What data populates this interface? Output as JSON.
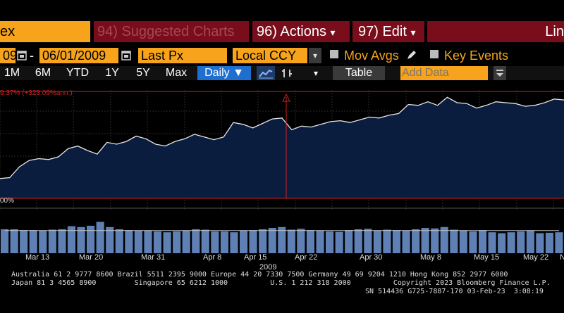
{
  "toolbar": {
    "security_fragment": "ex",
    "suggested_charts": "94) Suggested Charts",
    "actions": "96) Actions",
    "edit": "97) Edit",
    "line_fragment": "Lin",
    "dropdown_glyph": "▾"
  },
  "settings": {
    "start_date_fragment": "09",
    "date_separator": "-",
    "end_date": "06/01/2009",
    "price_field": "Last Px",
    "currency": "Local CCY",
    "mov_avgs": "Mov Avgs",
    "key_events": "Key Events"
  },
  "ranges": {
    "items": [
      "1M",
      "6M",
      "YTD",
      "1Y",
      "5Y",
      "Max"
    ],
    "frequency": "Daily ▼",
    "table_label": "Table",
    "add_data_placeholder": "Add Data"
  },
  "chart_data": {
    "type": "area",
    "annotation_top": "9.37% (+323.09%ann.)",
    "annotation_bottom": "00%",
    "x_ticks": [
      "Mar 13",
      "Mar 20",
      "Mar 31",
      "Apr 8",
      "Apr 15",
      "Apr 22",
      "Apr 30",
      "May 8",
      "May 15",
      "May 22",
      "N"
    ],
    "year_label": "2009",
    "price_series": [
      0.22,
      0.23,
      0.35,
      0.42,
      0.44,
      0.43,
      0.46,
      0.55,
      0.58,
      0.53,
      0.49,
      0.62,
      0.6,
      0.63,
      0.69,
      0.66,
      0.6,
      0.58,
      0.63,
      0.66,
      0.71,
      0.68,
      0.65,
      0.68,
      0.84,
      0.82,
      0.78,
      0.83,
      0.88,
      0.89,
      0.76,
      0.8,
      0.79,
      0.82,
      0.85,
      0.86,
      0.84,
      0.87,
      0.9,
      0.89,
      0.92,
      0.94,
      1.04,
      1.03,
      1.07,
      1.03,
      1.12,
      1.06,
      1.05,
      1.0,
      1.03,
      1.07,
      1.06,
      1.05,
      1.02,
      1.03,
      1.06,
      1.1,
      1.09
    ],
    "volume_series": [
      0.55,
      0.55,
      0.53,
      0.53,
      0.52,
      0.54,
      0.55,
      0.62,
      0.6,
      0.63,
      0.72,
      0.6,
      0.55,
      0.53,
      0.52,
      0.52,
      0.5,
      0.48,
      0.5,
      0.52,
      0.55,
      0.54,
      0.5,
      0.5,
      0.48,
      0.52,
      0.53,
      0.55,
      0.58,
      0.6,
      0.54,
      0.56,
      0.53,
      0.52,
      0.5,
      0.49,
      0.53,
      0.55,
      0.56,
      0.52,
      0.54,
      0.53,
      0.52,
      0.55,
      0.58,
      0.57,
      0.6,
      0.54,
      0.52,
      0.5,
      0.53,
      0.48,
      0.46,
      0.48,
      0.5,
      0.52,
      0.46,
      0.47,
      0.48
    ],
    "colors": {
      "fill": "#0b1d3e",
      "line": "#e8e8e8",
      "volume": "#5e80b4",
      "marker": "#d02020"
    }
  },
  "footer": {
    "line1": "Australia 61 2 9777 8600 Brazil 5511 2395 9000 Europe 44 20 7330 7500 Germany 49 69 9204 1210 Hong Kong 852 2977 6000",
    "line2": "Japan 81 3 4565 8900         Singapore 65 6212 1000          U.S. 1 212 318 2000          Copyright 2023 Bloomberg Finance L.P.",
    "line3": "SN 514436 G725-7887-170 03-Feb-23  3:08:19"
  }
}
